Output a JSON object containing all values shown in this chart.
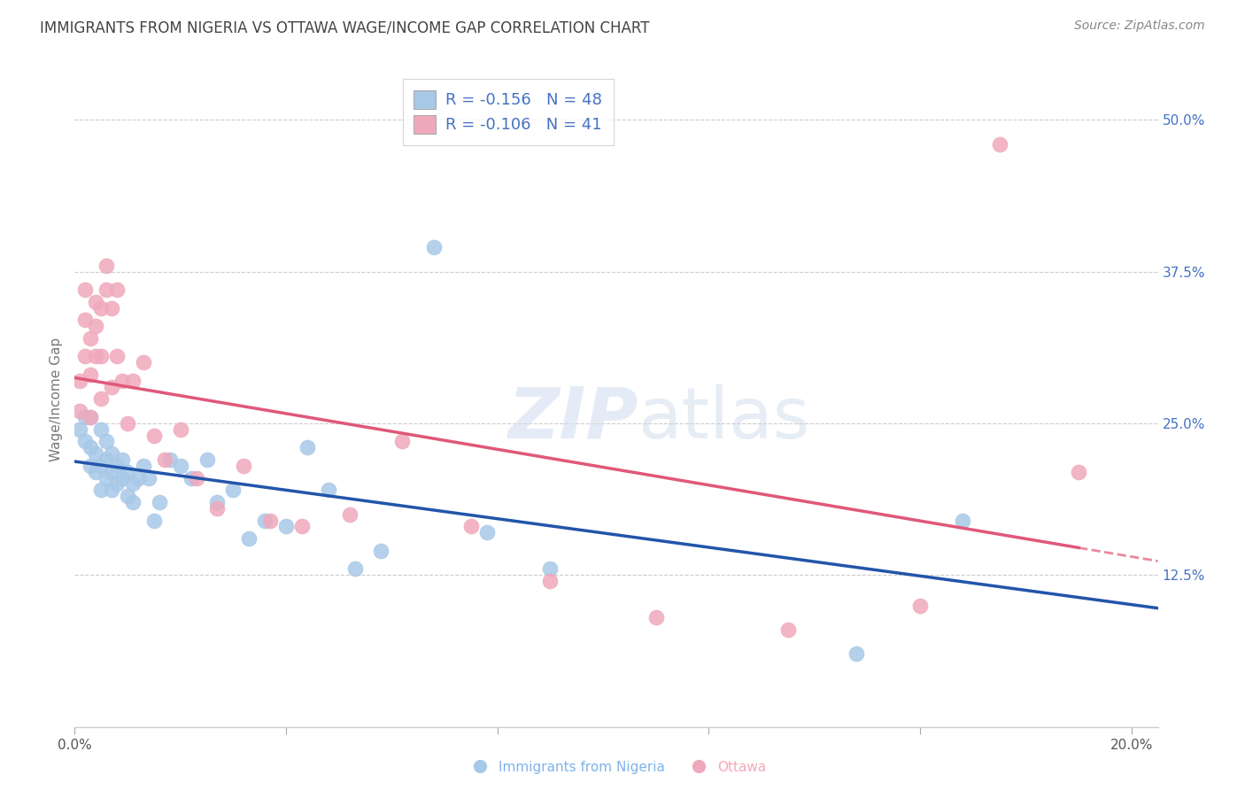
{
  "title": "IMMIGRANTS FROM NIGERIA VS OTTAWA WAGE/INCOME GAP CORRELATION CHART",
  "source": "Source: ZipAtlas.com",
  "xlabel_nigeria": "Immigrants from Nigeria",
  "xlabel_ottawa": "Ottawa",
  "ylabel": "Wage/Income Gap",
  "xlim": [
    0.0,
    0.205
  ],
  "ylim": [
    0.0,
    0.54
  ],
  "ytick_labels": [
    "12.5%",
    "25.0%",
    "37.5%",
    "50.0%"
  ],
  "ytick_positions": [
    0.125,
    0.25,
    0.375,
    0.5
  ],
  "blue_R": -0.156,
  "blue_N": 48,
  "pink_R": -0.106,
  "pink_N": 41,
  "blue_scatter_color": "#A8C8E8",
  "pink_scatter_color": "#F0A8BC",
  "blue_line_color": "#2255AA",
  "pink_line_color": "#E05878",
  "watermark_zip": "ZIP",
  "watermark_atlas": "atlas",
  "nigeria_x": [
    0.001,
    0.002,
    0.002,
    0.003,
    0.003,
    0.003,
    0.004,
    0.004,
    0.005,
    0.005,
    0.005,
    0.006,
    0.006,
    0.006,
    0.007,
    0.007,
    0.007,
    0.008,
    0.008,
    0.009,
    0.009,
    0.01,
    0.01,
    0.011,
    0.011,
    0.012,
    0.013,
    0.014,
    0.015,
    0.016,
    0.018,
    0.02,
    0.022,
    0.025,
    0.027,
    0.03,
    0.033,
    0.036,
    0.04,
    0.044,
    0.048,
    0.053,
    0.058,
    0.068,
    0.078,
    0.09,
    0.148,
    0.168
  ],
  "nigeria_y": [
    0.245,
    0.235,
    0.255,
    0.215,
    0.23,
    0.255,
    0.21,
    0.225,
    0.195,
    0.215,
    0.245,
    0.205,
    0.22,
    0.235,
    0.195,
    0.21,
    0.225,
    0.2,
    0.215,
    0.205,
    0.22,
    0.19,
    0.21,
    0.185,
    0.2,
    0.205,
    0.215,
    0.205,
    0.17,
    0.185,
    0.22,
    0.215,
    0.205,
    0.22,
    0.185,
    0.195,
    0.155,
    0.17,
    0.165,
    0.23,
    0.195,
    0.13,
    0.145,
    0.395,
    0.16,
    0.13,
    0.06,
    0.17
  ],
  "ottawa_x": [
    0.001,
    0.001,
    0.002,
    0.002,
    0.002,
    0.003,
    0.003,
    0.003,
    0.004,
    0.004,
    0.004,
    0.005,
    0.005,
    0.005,
    0.006,
    0.006,
    0.007,
    0.007,
    0.008,
    0.008,
    0.009,
    0.01,
    0.011,
    0.013,
    0.015,
    0.017,
    0.02,
    0.023,
    0.027,
    0.032,
    0.037,
    0.043,
    0.052,
    0.062,
    0.075,
    0.09,
    0.11,
    0.135,
    0.16,
    0.175,
    0.19
  ],
  "ottawa_y": [
    0.26,
    0.285,
    0.305,
    0.335,
    0.36,
    0.255,
    0.29,
    0.32,
    0.305,
    0.33,
    0.35,
    0.27,
    0.305,
    0.345,
    0.36,
    0.38,
    0.345,
    0.28,
    0.305,
    0.36,
    0.285,
    0.25,
    0.285,
    0.3,
    0.24,
    0.22,
    0.245,
    0.205,
    0.18,
    0.215,
    0.17,
    0.165,
    0.175,
    0.235,
    0.165,
    0.12,
    0.09,
    0.08,
    0.1,
    0.48,
    0.21
  ]
}
